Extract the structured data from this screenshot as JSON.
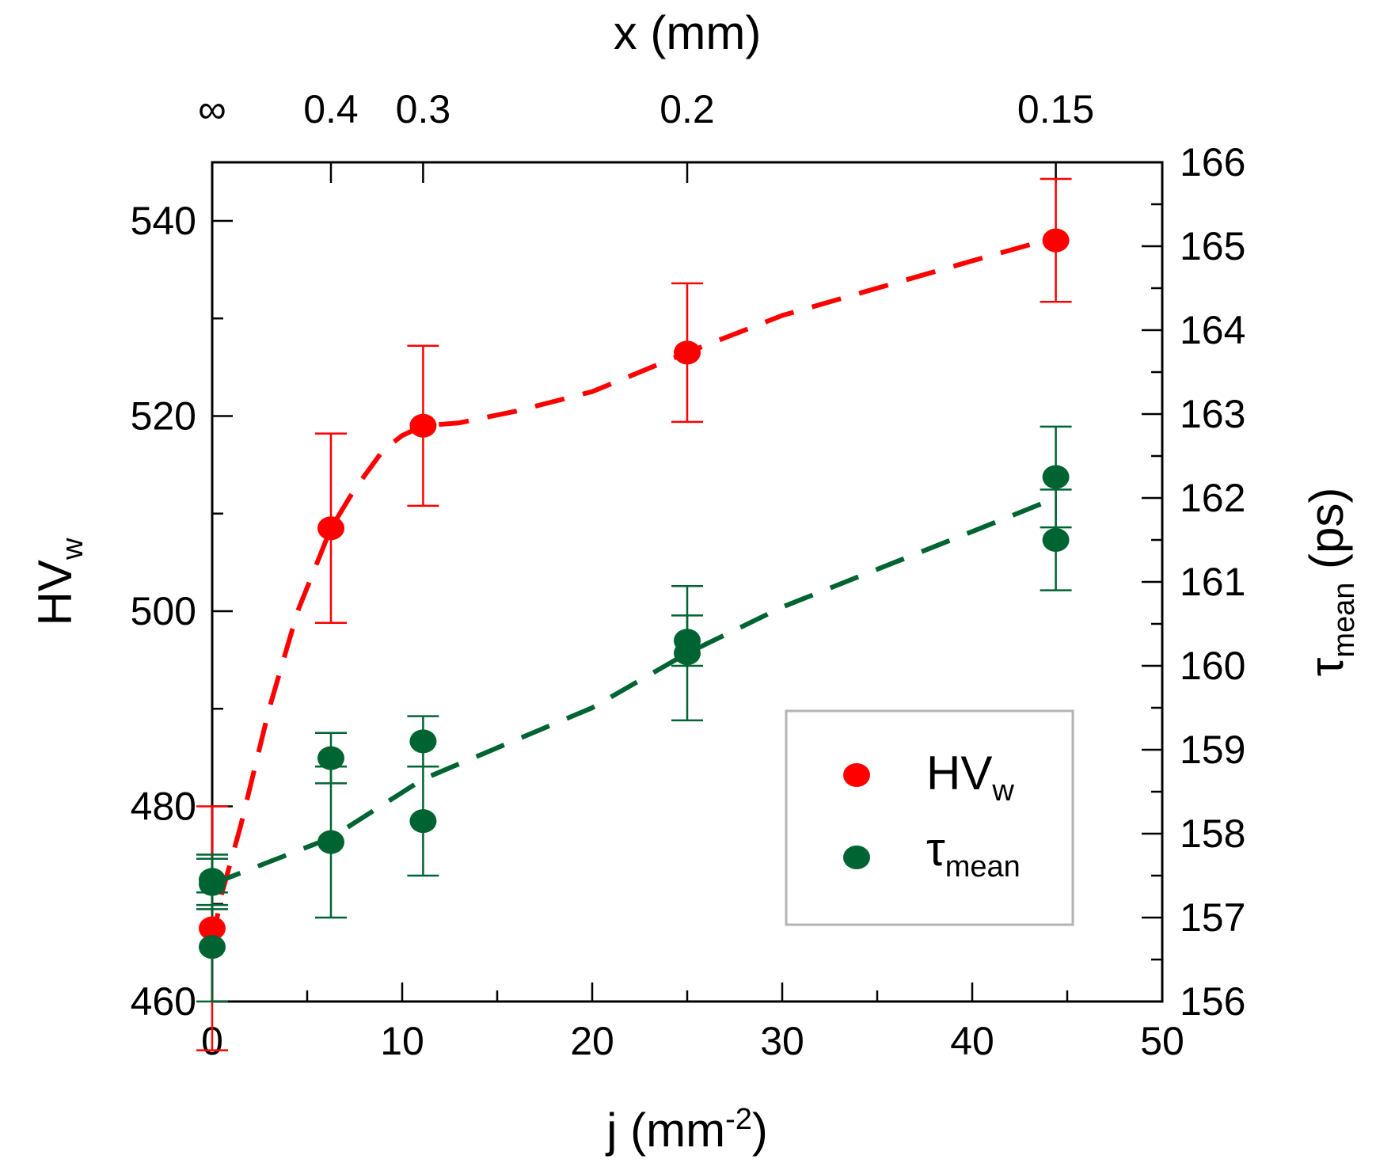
{
  "chart_data": {
    "type": "scatter",
    "title": "",
    "xlabel": "j (mm⁻²)",
    "xlabel_base": "j (mm",
    "xlabel_exp": "-2",
    "xlabel_close": ")",
    "x2label": "x (mm)",
    "ylabel_base": "HV",
    "ylabel_sub": "w",
    "y2label_base": "τ",
    "y2label_sub": "mean",
    "y2label_unit": " (ps)",
    "xlim": [
      0,
      50
    ],
    "ylim": [
      460,
      546
    ],
    "y2lim": [
      156,
      166
    ],
    "x_ticks": [
      "0",
      "10",
      "20",
      "30",
      "40",
      "50"
    ],
    "y_ticks": [
      "460",
      "480",
      "500",
      "520",
      "540"
    ],
    "y2_ticks": [
      "156",
      "157",
      "158",
      "159",
      "160",
      "161",
      "162",
      "163",
      "164",
      "165",
      "166"
    ],
    "x2_ticks": [
      {
        "label": "∞",
        "j": 0
      },
      {
        "label": "0.4",
        "j": 6.25
      },
      {
        "label": "0.3",
        "j": 11.1
      },
      {
        "label": "0.2",
        "j": 25
      },
      {
        "label": "0.15",
        "j": 44.4
      }
    ],
    "series": [
      {
        "name": "HVw",
        "legend_base": "HV",
        "legend_sub": "w",
        "axis": "left",
        "color": "#ff0000",
        "points": [
          {
            "x": 0,
            "y": 467.5,
            "err": 12.5
          },
          {
            "x": 6.25,
            "y": 508.5,
            "err": 9.7
          },
          {
            "x": 11.1,
            "y": 519.0,
            "err": 8.2
          },
          {
            "x": 25,
            "y": 526.5,
            "err": 7.1
          },
          {
            "x": 44.4,
            "y": 538.0,
            "err": 6.3
          }
        ],
        "trend": [
          [
            0,
            466
          ],
          [
            0.5,
            471
          ],
          [
            1.5,
            478
          ],
          [
            3,
            490
          ],
          [
            4.5,
            500
          ],
          [
            6.25,
            508.5
          ],
          [
            7.5,
            512.5
          ],
          [
            9,
            516.5
          ],
          [
            10,
            518
          ],
          [
            11.1,
            519
          ],
          [
            13,
            519.3
          ],
          [
            16,
            520.5
          ],
          [
            20,
            522.5
          ],
          [
            25,
            526.5
          ],
          [
            30,
            530.3
          ],
          [
            35,
            533.1
          ],
          [
            40,
            535.9
          ],
          [
            44.4,
            538.3
          ]
        ]
      },
      {
        "name": "τmean",
        "legend_base": "τ",
        "legend_sub": "mean",
        "axis": "right",
        "color": "#006432",
        "points": [
          {
            "x": 0,
            "y": 157.45,
            "err": 0.3
          },
          {
            "x": 0,
            "y": 157.4,
            "err": 0.3
          },
          {
            "x": 0,
            "y": 156.65,
            "err": 0.65
          },
          {
            "x": 6.25,
            "y": 158.9,
            "err": 0.3
          },
          {
            "x": 6.25,
            "y": 157.9,
            "err": 0.9
          },
          {
            "x": 11.1,
            "y": 159.1,
            "err": 0.3
          },
          {
            "x": 11.1,
            "y": 158.15,
            "err": 0.65
          },
          {
            "x": 25,
            "y": 160.3,
            "err": 0.3
          },
          {
            "x": 25,
            "y": 160.15,
            "err": 0.8
          },
          {
            "x": 44.4,
            "y": 162.25,
            "err": 0.6
          },
          {
            "x": 44.4,
            "y": 161.5,
            "err": 0.6
          }
        ],
        "trend": [
          [
            0,
            157.4
          ],
          [
            6.25,
            157.95
          ],
          [
            11.1,
            158.65
          ],
          [
            20,
            159.5
          ],
          [
            25,
            160.15
          ],
          [
            30,
            160.7
          ],
          [
            35,
            161.15
          ],
          [
            40,
            161.6
          ],
          [
            44.4,
            162.0
          ]
        ]
      }
    ],
    "legend_position": "lower-right"
  }
}
